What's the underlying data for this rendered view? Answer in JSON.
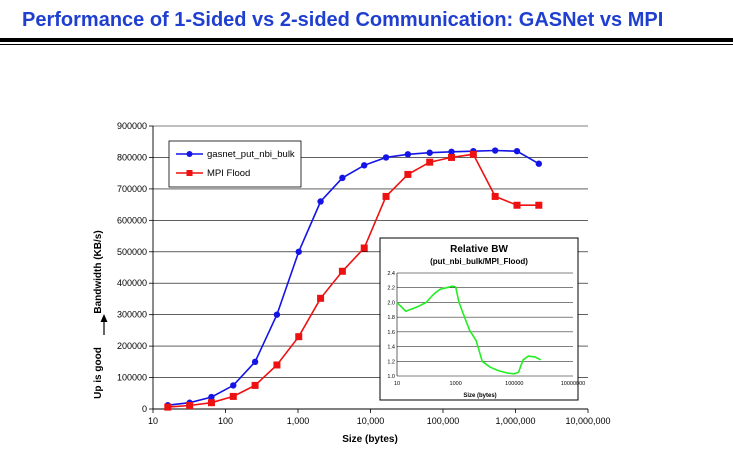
{
  "slide": {
    "title": "Performance of 1-Sided vs 2-sided Communication: GASNet vs MPI"
  },
  "colors": {
    "title": "#1f3fd0",
    "gasnet": "#1414e6",
    "mpi": "#ee1111",
    "relative": "#22ee22"
  },
  "chart_data": [
    {
      "type": "line",
      "xlabel": "Size (bytes)",
      "ylabel": "Bandwidth (KB/s)",
      "ylabel_note": "Up is good",
      "xscale": "log",
      "xlim": [
        10,
        10000000
      ],
      "ylim": [
        0,
        900000
      ],
      "grid": "horizontal",
      "x_ticks": [
        "10",
        "100",
        "1,000",
        "10,000",
        "100,000",
        "1,000,000",
        "10,000,000"
      ],
      "y_ticks": [
        "0",
        "100000",
        "200000",
        "300000",
        "400000",
        "500000",
        "600000",
        "700000",
        "800000",
        "900000"
      ],
      "legend_position": "top-left",
      "series": [
        {
          "name": "gasnet_put_nbi_bulk",
          "marker": "circle",
          "x": [
            16,
            32,
            64,
            128,
            256,
            512,
            1024,
            2048,
            4096,
            8192,
            16384,
            32768,
            65536,
            131072,
            262144,
            524288,
            1048576,
            2097152
          ],
          "y": [
            12000,
            20000,
            38000,
            75000,
            150000,
            300000,
            500000,
            660000,
            735000,
            775000,
            800000,
            810000,
            815000,
            818000,
            820000,
            822000,
            820000,
            780000
          ]
        },
        {
          "name": "MPI Flood",
          "marker": "square",
          "x": [
            16,
            32,
            64,
            128,
            256,
            512,
            1024,
            2048,
            4096,
            8192,
            16384,
            32768,
            65536,
            131072,
            262144,
            524288,
            1048576,
            2097152
          ],
          "y": [
            6000,
            11000,
            20000,
            40000,
            75000,
            140000,
            230000,
            352000,
            438000,
            512000,
            676000,
            746000,
            785000,
            800000,
            810000,
            676000,
            648000,
            648000
          ]
        }
      ]
    },
    {
      "type": "line",
      "title": "Relative BW",
      "subtitle": "(put_nbi_bulk/MPI_Flood)",
      "xlabel": "Size (bytes)",
      "xscale": "log",
      "xlim": [
        10,
        10000000
      ],
      "ylim": [
        1.0,
        2.4
      ],
      "grid": "horizontal",
      "x_ticks": [
        "10",
        "1000",
        "100000",
        "10000000"
      ],
      "y_ticks": [
        "1.0",
        "1.2",
        "1.4",
        "1.6",
        "1.8",
        "2.0",
        "2.2",
        "2.4"
      ],
      "series": [
        {
          "x": [
            10,
            20,
            50,
            100,
            150,
            200,
            300,
            500,
            800,
            1000,
            1300,
            2000,
            3000,
            5000,
            8000,
            15000,
            30000,
            60000,
            100000,
            140000,
            160000,
            200000,
            300000,
            500000,
            800000
          ],
          "y": [
            2.0,
            1.88,
            1.94,
            2.0,
            2.08,
            2.13,
            2.18,
            2.2,
            2.22,
            2.21,
            2.0,
            1.8,
            1.62,
            1.48,
            1.2,
            1.12,
            1.07,
            1.04,
            1.03,
            1.05,
            1.12,
            1.22,
            1.27,
            1.26,
            1.22
          ]
        }
      ]
    }
  ]
}
